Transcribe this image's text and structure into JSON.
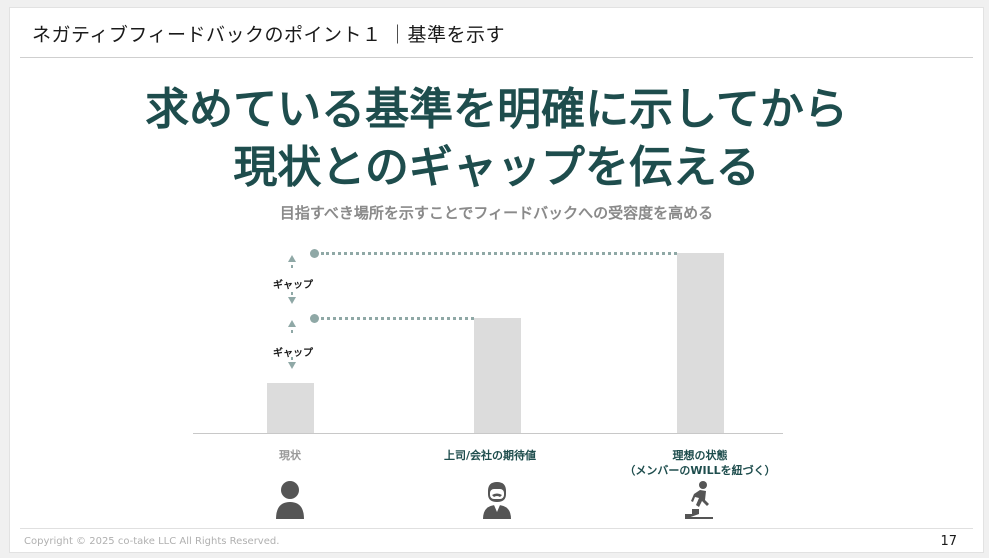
{
  "header": {
    "title": "ネガティブフィードバックのポイント１ ｜基準を示す"
  },
  "headline": {
    "line1": "求めている基準を明確に示してから",
    "line2": "現状とのギャップを伝える"
  },
  "subtitle": "目指すべき場所を示すことでフィードバックへの受容度を高める",
  "chart_data": {
    "type": "bar",
    "categories": [
      "現状",
      "上司/会社の期待値",
      "理想の状態\n（メンバーのWILLを紐づく）"
    ],
    "values": [
      1,
      2.3,
      3.6
    ],
    "ylim": [
      0,
      4
    ],
    "annotations": [
      "ギャップ",
      "ギャップ"
    ]
  },
  "labels": {
    "cat1": "現状",
    "cat2": "上司/会社の期待値",
    "cat3_line1": "理想の状態",
    "cat3_line2": "（メンバーのWILLを紐づく）",
    "gap_upper": "ギャップ",
    "gap_lower": "ギャップ"
  },
  "icons": [
    "person-icon",
    "manager-icon",
    "climbing-stairs-icon"
  ],
  "colors": {
    "accent": "#1e4d4d",
    "bar": "#dcdcdc",
    "connector": "#8fa8a6"
  },
  "footer": {
    "copyright": "Copyright © 2025 co-take LLC All Rights Reserved.",
    "page": "17"
  }
}
